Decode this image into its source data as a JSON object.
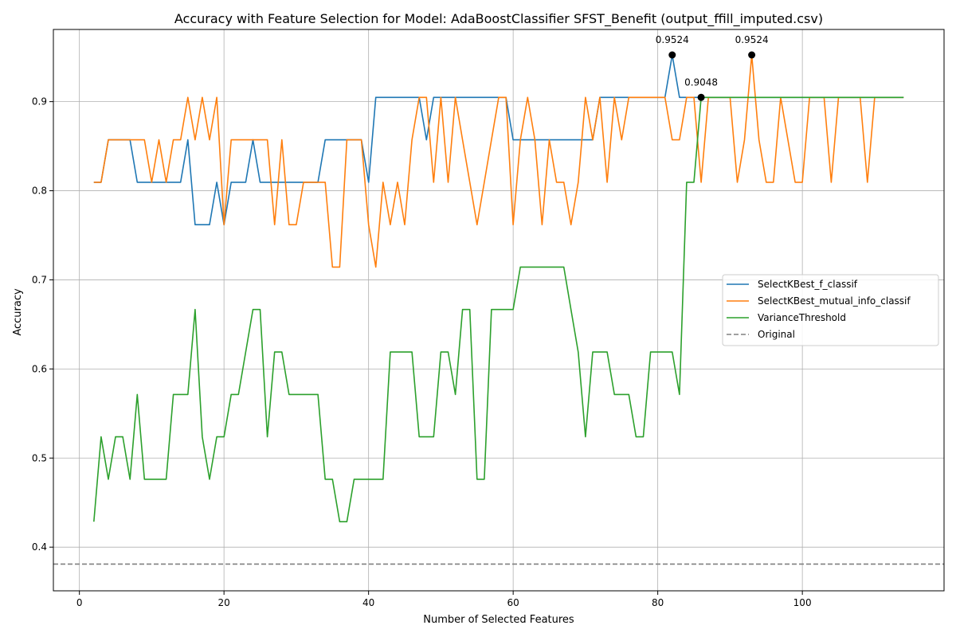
{
  "chart_data": {
    "type": "line",
    "title": "Accuracy with Feature Selection for Model: AdaBoostClassifier SFST_Benefit (output_ffill_imputed.csv)",
    "xlabel": "Number of Selected Features",
    "ylabel": "Accuracy",
    "xlim": [
      -3.6,
      119.6
    ],
    "ylim": [
      0.351,
      0.981
    ],
    "xticks": [
      0,
      20,
      40,
      60,
      80,
      100
    ],
    "yticks": [
      0.4,
      0.5,
      0.6,
      0.7,
      0.8,
      0.9
    ],
    "ytick_labels": [
      "0.4",
      "0.5",
      "0.6",
      "0.7",
      "0.8",
      "0.9"
    ],
    "grid": true,
    "legend_position": "center-right",
    "x": [
      2,
      3,
      4,
      5,
      6,
      7,
      8,
      9,
      10,
      11,
      12,
      13,
      14,
      15,
      16,
      17,
      18,
      19,
      20,
      21,
      22,
      23,
      24,
      25,
      26,
      27,
      28,
      29,
      30,
      31,
      32,
      33,
      34,
      35,
      36,
      37,
      38,
      39,
      40,
      41,
      42,
      43,
      44,
      45,
      46,
      47,
      48,
      49,
      50,
      51,
      52,
      53,
      54,
      55,
      56,
      57,
      58,
      59,
      60,
      61,
      62,
      63,
      64,
      65,
      66,
      67,
      68,
      69,
      70,
      71,
      72,
      73,
      74,
      75,
      76,
      77,
      78,
      79,
      80,
      81,
      82,
      83,
      84,
      85,
      86,
      87,
      88,
      89,
      90,
      91,
      92,
      93,
      94,
      95,
      96,
      97,
      98,
      99,
      100,
      101,
      102,
      103,
      104,
      105,
      106,
      107,
      108,
      109,
      110,
      111,
      112,
      113,
      114
    ],
    "series": [
      {
        "name": "SelectKBest_f_classif",
        "color": "#1f77b4",
        "style": "solid",
        "values": [
          0.8095,
          0.8095,
          0.8571,
          0.8571,
          0.8571,
          0.8571,
          0.8095,
          0.8095,
          0.8095,
          0.8095,
          0.8095,
          0.8095,
          0.8095,
          0.8571,
          0.7619,
          0.7619,
          0.7619,
          0.8095,
          0.7619,
          0.8095,
          0.8095,
          0.8095,
          0.8571,
          0.8095,
          0.8095,
          0.8095,
          0.8095,
          0.8095,
          0.8095,
          0.8095,
          0.8095,
          0.8095,
          0.8571,
          0.8571,
          0.8571,
          0.8571,
          0.8571,
          0.8571,
          0.8095,
          0.9048,
          0.9048,
          0.9048,
          0.9048,
          0.9048,
          0.9048,
          0.9048,
          0.8571,
          0.9048,
          0.9048,
          0.9048,
          0.9048,
          0.9048,
          0.9048,
          0.9048,
          0.9048,
          0.9048,
          0.9048,
          0.9048,
          0.8571,
          0.8571,
          0.8571,
          0.8571,
          0.8571,
          0.8571,
          0.8571,
          0.8571,
          0.8571,
          0.8571,
          0.8571,
          0.8571,
          0.9048,
          0.9048,
          0.9048,
          0.9048,
          0.9048,
          0.9048,
          0.9048,
          0.9048,
          0.9048,
          0.9048,
          0.9524,
          0.9048,
          0.9048,
          0.9048,
          0.9048,
          0.9048,
          0.9048,
          0.9048,
          0.9048,
          0.9048,
          0.9048,
          0.9048,
          0.9048,
          0.9048,
          0.9048,
          0.9048,
          0.9048,
          0.9048,
          0.9048,
          0.9048,
          0.9048,
          0.9048,
          0.9048,
          0.9048,
          0.9048,
          0.9048,
          0.9048,
          0.9048,
          0.9048,
          0.9048,
          0.9048,
          0.9048,
          0.9048
        ]
      },
      {
        "name": "SelectKBest_mutual_info_classif",
        "color": "#ff7f0e",
        "style": "solid",
        "values": [
          0.8095,
          0.8095,
          0.8571,
          0.8571,
          0.8571,
          0.8571,
          0.8571,
          0.8571,
          0.8095,
          0.8571,
          0.8095,
          0.8571,
          0.8571,
          0.9048,
          0.8571,
          0.9048,
          0.8571,
          0.9048,
          0.7619,
          0.8571,
          0.8571,
          0.8571,
          0.8571,
          0.8571,
          0.8571,
          0.7619,
          0.8571,
          0.7619,
          0.7619,
          0.8095,
          0.8095,
          0.8095,
          0.8095,
          0.7143,
          0.7143,
          0.8571,
          0.8571,
          0.8571,
          0.7619,
          0.7143,
          0.8095,
          0.7619,
          0.8095,
          0.7619,
          0.8571,
          0.9048,
          0.9048,
          0.8095,
          0.9048,
          0.8095,
          0.9048,
          0.8571,
          0.8095,
          0.7619,
          0.8095,
          0.8571,
          0.9048,
          0.9048,
          0.7619,
          0.8571,
          0.9048,
          0.8571,
          0.7619,
          0.8571,
          0.8095,
          0.8095,
          0.7619,
          0.8095,
          0.9048,
          0.8571,
          0.9048,
          0.8095,
          0.9048,
          0.8571,
          0.9048,
          0.9048,
          0.9048,
          0.9048,
          0.9048,
          0.9048,
          0.8571,
          0.8571,
          0.9048,
          0.9048,
          0.8095,
          0.9048,
          0.9048,
          0.9048,
          0.9048,
          0.8095,
          0.8571,
          0.9524,
          0.8571,
          0.8095,
          0.8095,
          0.9048,
          0.8571,
          0.8095,
          0.8095,
          0.9048,
          0.9048,
          0.9048,
          0.8095,
          0.9048,
          0.9048,
          0.9048,
          0.9048,
          0.8095,
          0.9048,
          0.9048,
          0.9048,
          0.9048,
          0.9048
        ]
      },
      {
        "name": "VarianceThreshold",
        "color": "#2ca02c",
        "style": "solid",
        "values": [
          0.4286,
          0.5238,
          0.4762,
          0.5238,
          0.5238,
          0.4762,
          0.5714,
          0.4762,
          0.4762,
          0.4762,
          0.4762,
          0.5714,
          0.5714,
          0.5714,
          0.6667,
          0.5238,
          0.4762,
          0.5238,
          0.5238,
          0.5714,
          0.5714,
          0.619,
          0.6667,
          0.6667,
          0.5238,
          0.619,
          0.619,
          0.5714,
          0.5714,
          0.5714,
          0.5714,
          0.5714,
          0.4762,
          0.4762,
          0.4286,
          0.4286,
          0.4762,
          0.4762,
          0.4762,
          0.4762,
          0.4762,
          0.619,
          0.619,
          0.619,
          0.619,
          0.5238,
          0.5238,
          0.5238,
          0.619,
          0.619,
          0.5714,
          0.6667,
          0.6667,
          0.4762,
          0.4762,
          0.6667,
          0.6667,
          0.6667,
          0.6667,
          0.7143,
          0.7143,
          0.7143,
          0.7143,
          0.7143,
          0.7143,
          0.7143,
          0.6667,
          0.619,
          0.5238,
          0.619,
          0.619,
          0.619,
          0.5714,
          0.5714,
          0.5714,
          0.5238,
          0.5238,
          0.619,
          0.619,
          0.619,
          0.619,
          0.5714,
          0.8095,
          0.8095,
          0.9048,
          0.9048,
          0.9048,
          0.9048,
          0.9048,
          0.9048,
          0.9048,
          0.9048,
          0.9048,
          0.9048,
          0.9048,
          0.9048,
          0.9048,
          0.9048,
          0.9048,
          0.9048,
          0.9048,
          0.9048,
          0.9048,
          0.9048,
          0.9048,
          0.9048,
          0.9048,
          0.9048,
          0.9048,
          0.9048,
          0.9048,
          0.9048,
          0.9048
        ]
      },
      {
        "name": "Original",
        "color": "#808080",
        "style": "dashed",
        "value": 0.381
      }
    ],
    "annotations": [
      {
        "x": 82,
        "y": 0.9524,
        "label": "0.9524"
      },
      {
        "x": 86,
        "y": 0.9048,
        "label": "0.9048"
      },
      {
        "x": 93,
        "y": 0.9524,
        "label": "0.9524"
      }
    ]
  }
}
